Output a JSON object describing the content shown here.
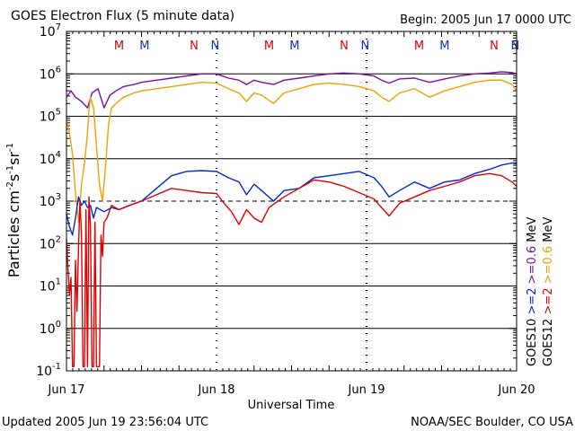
{
  "header": {
    "title": "GOES Electron Flux (5 minute data)",
    "begin": "Begin: 2005 Jun 17 0000 UTC"
  },
  "footer": {
    "updated": "Updated 2005 Jun 19 23:56:04 UTC",
    "credit": "NOAA/SEC Boulder, CO USA"
  },
  "colors": {
    "goes10_06": "#7a0fa0",
    "goes12_06": "#f0a000",
    "goes10_2": "#0028d0",
    "goes12_2": "#e00000",
    "marker_m": "#e00000",
    "marker_n": "#1030c0"
  },
  "chart_data": {
    "type": "line",
    "title": "GOES Electron Flux (5 minute data)",
    "xlabel": "Universal Time",
    "ylabel": "Particles cm-2s-1sr-1",
    "xlim": [
      0,
      3
    ],
    "x_unit": "days since 2005 Jun 17 0000 UTC",
    "ylog": true,
    "ylim_exp": [
      -1,
      7
    ],
    "x_ticks": [
      {
        "value": 0,
        "label": "Jun 17"
      },
      {
        "value": 1,
        "label": "Jun 18"
      },
      {
        "value": 2,
        "label": "Jun 19"
      },
      {
        "value": 3,
        "label": "Jun 20"
      }
    ],
    "y_ticks": [
      {
        "exp": -1,
        "mantissa": "10",
        "power": "-1"
      },
      {
        "exp": 0,
        "mantissa": "10",
        "power": "0"
      },
      {
        "exp": 1,
        "mantissa": "10",
        "power": "1"
      },
      {
        "exp": 2,
        "mantissa": "10",
        "power": "2"
      },
      {
        "exp": 3,
        "mantissa": "10",
        "power": "3"
      },
      {
        "exp": 4,
        "mantissa": "10",
        "power": "4"
      },
      {
        "exp": 5,
        "mantissa": "10",
        "power": "5"
      },
      {
        "exp": 6,
        "mantissa": "10",
        "power": "6"
      },
      {
        "exp": 7,
        "mantissa": "10",
        "power": "7"
      }
    ],
    "hlines_solid_exp": [
      0,
      1,
      2,
      4,
      5,
      6
    ],
    "threshold_exp": 3,
    "markers": [
      {
        "label": "M",
        "x": 0.35,
        "color": "marker_m"
      },
      {
        "label": "M",
        "x": 0.52,
        "color": "marker_n"
      },
      {
        "label": "N",
        "x": 0.85,
        "color": "marker_m"
      },
      {
        "label": "N",
        "x": 0.99,
        "color": "marker_n"
      },
      {
        "label": "M",
        "x": 1.35,
        "color": "marker_m"
      },
      {
        "label": "M",
        "x": 1.52,
        "color": "marker_n"
      },
      {
        "label": "N",
        "x": 1.85,
        "color": "marker_m"
      },
      {
        "label": "N",
        "x": 1.99,
        "color": "marker_n"
      },
      {
        "label": "M",
        "x": 2.35,
        "color": "marker_m"
      },
      {
        "label": "M",
        "x": 2.52,
        "color": "marker_n"
      },
      {
        "label": "N",
        "x": 2.85,
        "color": "marker_m"
      },
      {
        "label": "N",
        "x": 2.99,
        "color": "marker_n"
      }
    ],
    "legend": [
      {
        "satellite": "GOES10",
        "energy": ">=2",
        "color": "goes10_2"
      },
      {
        "satellite": "GOES10",
        "energy": ">=0.6",
        "color": "goes10_06"
      },
      {
        "satellite": "GOES12",
        "energy": ">=2",
        "color": "goes12_2"
      },
      {
        "satellite": "GOES12",
        "energy": ">=0.6",
        "color": "goes12_06"
      }
    ],
    "legend_unit": "MeV",
    "series": [
      {
        "name": "GOES10 >=0.6 MeV",
        "color": "goes10_06",
        "points": [
          [
            0,
            5.45
          ],
          [
            0.03,
            5.6
          ],
          [
            0.06,
            5.45
          ],
          [
            0.1,
            5.35
          ],
          [
            0.14,
            5.2
          ],
          [
            0.17,
            5.55
          ],
          [
            0.21,
            5.65
          ],
          [
            0.25,
            5.2
          ],
          [
            0.29,
            5.5
          ],
          [
            0.33,
            5.6
          ],
          [
            0.38,
            5.7
          ],
          [
            0.45,
            5.75
          ],
          [
            0.5,
            5.8
          ],
          [
            0.6,
            5.85
          ],
          [
            0.7,
            5.9
          ],
          [
            0.8,
            5.95
          ],
          [
            0.9,
            6.0
          ],
          [
            1.0,
            6.0
          ],
          [
            1.08,
            5.9
          ],
          [
            1.15,
            5.85
          ],
          [
            1.2,
            5.75
          ],
          [
            1.25,
            5.85
          ],
          [
            1.3,
            5.8
          ],
          [
            1.38,
            5.75
          ],
          [
            1.45,
            5.85
          ],
          [
            1.55,
            5.9
          ],
          [
            1.65,
            5.95
          ],
          [
            1.75,
            6.0
          ],
          [
            1.85,
            6.02
          ],
          [
            1.95,
            6.0
          ],
          [
            2.05,
            5.95
          ],
          [
            2.1,
            5.85
          ],
          [
            2.15,
            5.78
          ],
          [
            2.22,
            5.88
          ],
          [
            2.32,
            5.9
          ],
          [
            2.42,
            5.8
          ],
          [
            2.52,
            5.88
          ],
          [
            2.62,
            5.95
          ],
          [
            2.72,
            6.0
          ],
          [
            2.82,
            6.02
          ],
          [
            2.9,
            6.05
          ],
          [
            2.97,
            6.03
          ],
          [
            3.0,
            6.0
          ]
        ]
      },
      {
        "name": "GOES12 >=0.6 MeV",
        "color": "goes12_06",
        "points": [
          [
            0,
            4.9
          ],
          [
            0.02,
            4.6
          ],
          [
            0.04,
            4.1
          ],
          [
            0.06,
            3.2
          ],
          [
            0.08,
            2.5
          ],
          [
            0.1,
            3.4
          ],
          [
            0.12,
            3.9
          ],
          [
            0.14,
            4.6
          ],
          [
            0.15,
            5.15
          ],
          [
            0.16,
            5.45
          ],
          [
            0.18,
            5.2
          ],
          [
            0.2,
            4.3
          ],
          [
            0.22,
            3.4
          ],
          [
            0.24,
            3.0
          ],
          [
            0.26,
            3.8
          ],
          [
            0.28,
            4.8
          ],
          [
            0.3,
            5.2
          ],
          [
            0.33,
            5.3
          ],
          [
            0.38,
            5.45
          ],
          [
            0.45,
            5.55
          ],
          [
            0.5,
            5.6
          ],
          [
            0.6,
            5.65
          ],
          [
            0.7,
            5.7
          ],
          [
            0.8,
            5.75
          ],
          [
            0.9,
            5.8
          ],
          [
            1.0,
            5.78
          ],
          [
            1.08,
            5.65
          ],
          [
            1.15,
            5.55
          ],
          [
            1.2,
            5.35
          ],
          [
            1.25,
            5.55
          ],
          [
            1.3,
            5.5
          ],
          [
            1.38,
            5.3
          ],
          [
            1.45,
            5.55
          ],
          [
            1.55,
            5.65
          ],
          [
            1.65,
            5.75
          ],
          [
            1.75,
            5.78
          ],
          [
            1.85,
            5.75
          ],
          [
            1.95,
            5.7
          ],
          [
            2.05,
            5.6
          ],
          [
            2.1,
            5.45
          ],
          [
            2.15,
            5.35
          ],
          [
            2.22,
            5.55
          ],
          [
            2.32,
            5.65
          ],
          [
            2.42,
            5.45
          ],
          [
            2.52,
            5.6
          ],
          [
            2.62,
            5.7
          ],
          [
            2.72,
            5.8
          ],
          [
            2.82,
            5.85
          ],
          [
            2.9,
            5.85
          ],
          [
            2.97,
            5.75
          ],
          [
            3.0,
            5.6
          ]
        ]
      },
      {
        "name": "GOES10 >=2 MeV",
        "color": "goes10_2",
        "points": [
          [
            0,
            2.7
          ],
          [
            0.02,
            2.4
          ],
          [
            0.04,
            2.2
          ],
          [
            0.06,
            2.6
          ],
          [
            0.08,
            3.1
          ],
          [
            0.1,
            2.9
          ],
          [
            0.12,
            3.0
          ],
          [
            0.14,
            2.85
          ],
          [
            0.16,
            2.9
          ],
          [
            0.18,
            2.6
          ],
          [
            0.2,
            2.85
          ],
          [
            0.25,
            2.75
          ],
          [
            0.3,
            2.85
          ],
          [
            0.35,
            2.8
          ],
          [
            0.42,
            2.9
          ],
          [
            0.5,
            3.0
          ],
          [
            0.6,
            3.3
          ],
          [
            0.7,
            3.6
          ],
          [
            0.8,
            3.7
          ],
          [
            0.9,
            3.72
          ],
          [
            1.0,
            3.7
          ],
          [
            1.08,
            3.55
          ],
          [
            1.15,
            3.45
          ],
          [
            1.2,
            3.15
          ],
          [
            1.25,
            3.4
          ],
          [
            1.3,
            3.25
          ],
          [
            1.38,
            3.0
          ],
          [
            1.45,
            3.25
          ],
          [
            1.55,
            3.3
          ],
          [
            1.65,
            3.55
          ],
          [
            1.75,
            3.6
          ],
          [
            1.85,
            3.65
          ],
          [
            1.95,
            3.7
          ],
          [
            2.05,
            3.55
          ],
          [
            2.1,
            3.35
          ],
          [
            2.15,
            3.1
          ],
          [
            2.22,
            3.25
          ],
          [
            2.32,
            3.45
          ],
          [
            2.42,
            3.3
          ],
          [
            2.52,
            3.45
          ],
          [
            2.62,
            3.5
          ],
          [
            2.72,
            3.65
          ],
          [
            2.82,
            3.75
          ],
          [
            2.9,
            3.85
          ],
          [
            2.97,
            3.9
          ],
          [
            3.0,
            3.88
          ]
        ]
      },
      {
        "name": "GOES12 >=2 MeV",
        "color": "goes12_2",
        "points": [
          [
            0,
            2.1
          ],
          [
            0.01,
            1.4
          ],
          [
            0.02,
            0.8
          ],
          [
            0.03,
            1.2
          ],
          [
            0.04,
            -0.9
          ],
          [
            0.05,
            -0.9
          ],
          [
            0.06,
            1.6
          ],
          [
            0.07,
            0.4
          ],
          [
            0.08,
            1.9
          ],
          [
            0.09,
            3.0
          ],
          [
            0.1,
            2.2
          ],
          [
            0.11,
            -0.9
          ],
          [
            0.12,
            -0.9
          ],
          [
            0.13,
            2.8
          ],
          [
            0.14,
            -0.9
          ],
          [
            0.15,
            3.1
          ],
          [
            0.16,
            2.4
          ],
          [
            0.17,
            -0.9
          ],
          [
            0.18,
            -0.9
          ],
          [
            0.19,
            2.5
          ],
          [
            0.2,
            -0.9
          ],
          [
            0.21,
            -0.9
          ],
          [
            0.22,
            -0.9
          ],
          [
            0.23,
            2.2
          ],
          [
            0.24,
            1.7
          ],
          [
            0.25,
            2.5
          ],
          [
            0.27,
            2.6
          ],
          [
            0.3,
            2.9
          ],
          [
            0.35,
            2.8
          ],
          [
            0.42,
            2.9
          ],
          [
            0.5,
            3.0
          ],
          [
            0.6,
            3.15
          ],
          [
            0.7,
            3.3
          ],
          [
            0.8,
            3.25
          ],
          [
            0.9,
            3.2
          ],
          [
            1.0,
            3.18
          ],
          [
            1.05,
            2.95
          ],
          [
            1.1,
            2.75
          ],
          [
            1.15,
            2.45
          ],
          [
            1.2,
            2.8
          ],
          [
            1.25,
            2.6
          ],
          [
            1.3,
            2.5
          ],
          [
            1.35,
            2.85
          ],
          [
            1.45,
            3.1
          ],
          [
            1.55,
            3.3
          ],
          [
            1.65,
            3.5
          ],
          [
            1.75,
            3.45
          ],
          [
            1.85,
            3.35
          ],
          [
            1.95,
            3.2
          ],
          [
            2.05,
            3.05
          ],
          [
            2.1,
            2.85
          ],
          [
            2.15,
            2.65
          ],
          [
            2.22,
            2.95
          ],
          [
            2.32,
            3.1
          ],
          [
            2.42,
            3.25
          ],
          [
            2.52,
            3.35
          ],
          [
            2.62,
            3.45
          ],
          [
            2.72,
            3.6
          ],
          [
            2.82,
            3.65
          ],
          [
            2.9,
            3.6
          ],
          [
            2.97,
            3.45
          ],
          [
            3.0,
            3.35
          ]
        ]
      }
    ]
  }
}
